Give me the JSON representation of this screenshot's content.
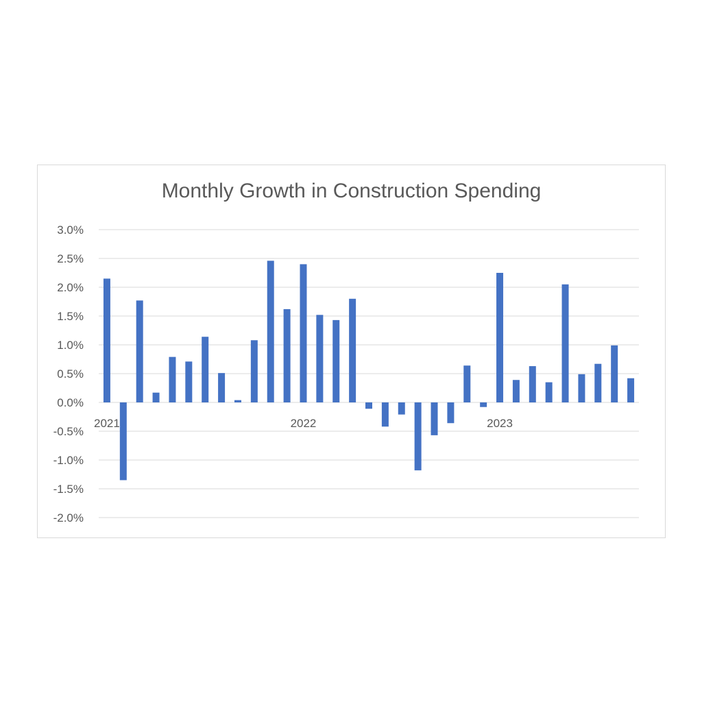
{
  "chart_data": {
    "type": "bar",
    "title": "Monthly Growth in Construction Spending",
    "xlabel": "",
    "ylabel": "",
    "ylim": [
      -0.02,
      0.03
    ],
    "yticks": [
      0.03,
      0.025,
      0.02,
      0.015,
      0.01,
      0.005,
      0.0,
      -0.005,
      -0.01,
      -0.015,
      -0.02
    ],
    "ytick_labels": [
      "3.0%",
      "2.5%",
      "2.0%",
      "1.5%",
      "1.0%",
      "0.5%",
      "0.0%",
      "-0.5%",
      "-1.0%",
      "-1.5%",
      "-2.0%"
    ],
    "category_labels": [
      "2021",
      "",
      "",
      "",
      "",
      "",
      "",
      "",
      "",
      "",
      "",
      "",
      "2022",
      "",
      "",
      "",
      "",
      "",
      "",
      "",
      "",
      "",
      "",
      "",
      "2023",
      "",
      "",
      "",
      "",
      "",
      "",
      "",
      ""
    ],
    "values": [
      0.0215,
      -0.0135,
      0.0177,
      0.0017,
      0.0079,
      0.0071,
      0.0114,
      0.0051,
      0.0004,
      0.0108,
      0.0246,
      0.0162,
      0.024,
      0.0152,
      0.0143,
      0.018,
      -0.0011,
      -0.0042,
      -0.0021,
      -0.0118,
      -0.0057,
      -0.0036,
      0.0064,
      -0.0008,
      0.0225,
      0.0039,
      0.0063,
      0.0035,
      0.0205,
      0.0049,
      0.0067,
      0.0099,
      0.0042
    ],
    "grid": true,
    "legend": "none",
    "colors": {
      "bar": "#4472c4",
      "grid": "#d9d9d9",
      "text": "#595959"
    }
  }
}
